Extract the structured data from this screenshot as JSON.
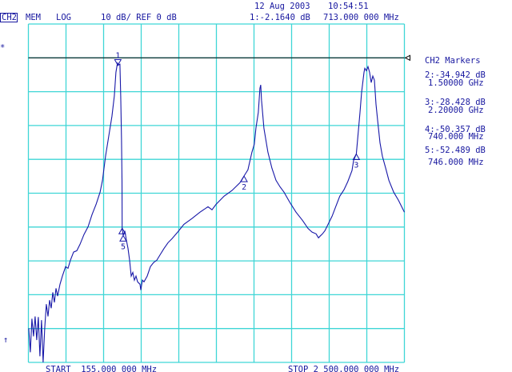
{
  "header": {
    "date": "12 Aug 2003",
    "time": "10:54:51",
    "channel": "CH2",
    "mem": "MEM",
    "format": "LOG",
    "scale": "10 dB/ REF 0 dB",
    "active_marker": "1:-2.1640 dB",
    "active_marker_freq": "713.000 000 MHz"
  },
  "footer": {
    "start": "START  155.000 000 MHz",
    "stop": "STOP 2 500.000 000 MHz"
  },
  "left_symbols": {
    "star": "*",
    "arrow": "↑"
  },
  "marker_panel": {
    "title": "CH2 Markers",
    "entries": [
      {
        "value": "2:-34.942 dB",
        "freq": "1.50000 GHz"
      },
      {
        "value": "3:-28.428 dB",
        "freq": "2.20000 GHz"
      },
      {
        "value": "4:-50.357 dB",
        "freq": "740.000 MHz"
      },
      {
        "value": "5:-52.489 dB",
        "freq": "746.000 MHz"
      }
    ]
  },
  "colors": {
    "grid": "#3fd6d6",
    "trace": "#1818a8",
    "text": "#1818a0",
    "reference": "#000000"
  },
  "chart_data": {
    "type": "line",
    "xlabel": "",
    "ylabel": "",
    "xlim": [
      155,
      2500
    ],
    "ylim": [
      -90,
      10
    ],
    "x_unit": "MHz",
    "y_unit": "dB",
    "reference_level": 0,
    "divisions": {
      "x": 10,
      "y": 10
    },
    "grid": true,
    "series": [
      {
        "x": [
          157,
          167,
          177,
          187,
          197,
          207,
          217,
          227,
          237,
          247,
          257,
          267,
          277,
          287,
          297,
          307,
          317,
          327,
          337,
          352,
          367,
          387,
          402,
          417,
          437,
          457,
          477,
          502,
          527,
          552,
          577,
          602,
          617,
          636,
          656,
          676,
          691,
          701,
          711,
          713,
          726,
          731,
          736,
          739,
          740,
          746,
          756,
          766,
          776,
          786,
          796,
          806,
          816,
          826,
          836,
          851,
          856,
          866,
          876,
          896,
          916,
          936,
          956,
          976,
          1001,
          1026,
          1051,
          1086,
          1125,
          1175,
          1225,
          1275,
          1300,
          1325,
          1375,
          1425,
          1474,
          1500,
          1524,
          1549,
          1564,
          1574,
          1589,
          1599,
          1604,
          1609,
          1624,
          1649,
          1674,
          1699,
          1724,
          1749,
          1784,
          1824,
          1864,
          1899,
          1924,
          1949,
          1964,
          1974,
          1989,
          2004,
          2024,
          2049,
          2074,
          2097,
          2123,
          2147,
          2173,
          2183,
          2200,
          2213,
          2223,
          2233,
          2248,
          2253,
          2263,
          2273,
          2283,
          2293,
          2303,
          2313,
          2323,
          2333,
          2348,
          2363,
          2383,
          2403,
          2433,
          2463,
          2500
        ],
        "y": [
          -79.9,
          -87.0,
          -77.1,
          -82.3,
          -76.4,
          -83.4,
          -76.6,
          -88.2,
          -77.5,
          -90.0,
          -79.9,
          -72.8,
          -76.4,
          -71.6,
          -74.0,
          -69.3,
          -72.3,
          -68.1,
          -70.4,
          -66.9,
          -64.5,
          -61.7,
          -62.2,
          -59.8,
          -57.4,
          -57.0,
          -55.1,
          -52.2,
          -49.9,
          -46.3,
          -43.3,
          -39.7,
          -36.2,
          -29.1,
          -23.2,
          -17.3,
          -11.3,
          -4.3,
          -1.4,
          -2.2,
          -1.9,
          -11.3,
          -24.3,
          -36.2,
          -50.4,
          -52.5,
          -51.1,
          -53.9,
          -56.3,
          -59.8,
          -64.5,
          -63.4,
          -65.7,
          -64.5,
          -66.2,
          -66.9,
          -68.6,
          -65.7,
          -66.2,
          -64.5,
          -61.7,
          -60.5,
          -59.8,
          -58.2,
          -56.3,
          -54.6,
          -53.4,
          -51.5,
          -49.2,
          -47.5,
          -45.6,
          -44.0,
          -44.9,
          -43.3,
          -40.9,
          -39.2,
          -36.9,
          -34.9,
          -33.1,
          -27.9,
          -25.5,
          -20.8,
          -16.1,
          -9.0,
          -8.0,
          -12.5,
          -20.8,
          -27.9,
          -32.6,
          -36.2,
          -38.1,
          -39.7,
          -42.6,
          -45.6,
          -48.0,
          -50.4,
          -51.5,
          -52.0,
          -53.2,
          -52.7,
          -52.0,
          -51.1,
          -49.2,
          -46.8,
          -43.7,
          -40.9,
          -39.0,
          -36.6,
          -33.3,
          -30.3,
          -28.4,
          -21.5,
          -16.1,
          -10.2,
          -4.3,
          -3.1,
          -3.8,
          -2.6,
          -4.3,
          -7.3,
          -5.4,
          -6.6,
          -13.7,
          -18.4,
          -25.1,
          -29.1,
          -32.6,
          -36.2,
          -39.7,
          -42.1,
          -45.6
        ]
      }
    ],
    "markers": [
      {
        "label": "1",
        "freq": 713,
        "db": -2.164,
        "style": "down"
      },
      {
        "label": "2",
        "freq": 1500,
        "db": -34.942,
        "style": "up"
      },
      {
        "label": "3",
        "freq": 2200,
        "db": -28.428,
        "style": "up"
      },
      {
        "label": "4",
        "freq": 740,
        "db": -50.357,
        "style": "up"
      },
      {
        "label": "5",
        "freq": 746,
        "db": -52.489,
        "style": "up"
      }
    ]
  }
}
